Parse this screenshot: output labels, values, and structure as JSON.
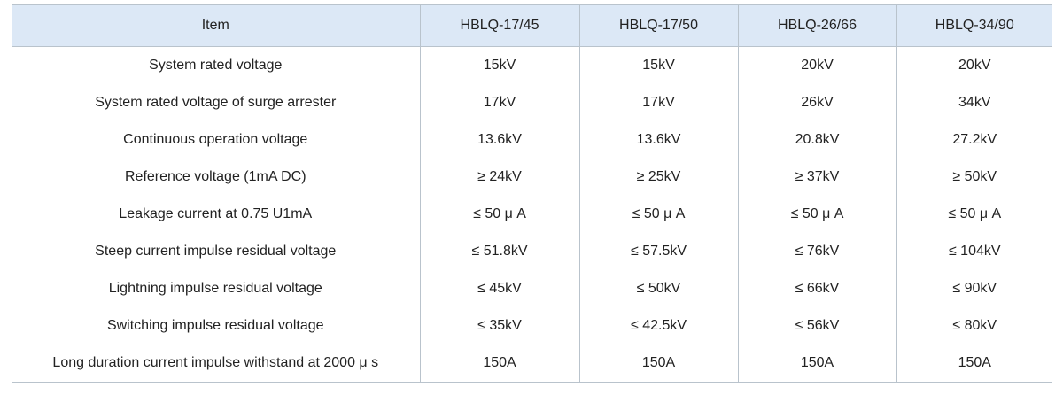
{
  "table": {
    "header": [
      "Item",
      "HBLQ-17/45",
      "HBLQ-17/50",
      "HBLQ-26/66",
      "HBLQ-34/90"
    ],
    "rows": [
      [
        "System rated voltage",
        "15kV",
        "15kV",
        "20kV",
        "20kV"
      ],
      [
        "System rated voltage of surge arrester",
        "17kV",
        "17kV",
        "26kV",
        "34kV"
      ],
      [
        "Continuous operation voltage",
        "13.6kV",
        "13.6kV",
        "20.8kV",
        "27.2kV"
      ],
      [
        "Reference voltage (1mA DC)",
        "≥ 24kV",
        "≥ 25kV",
        "≥ 37kV",
        "≥ 50kV"
      ],
      [
        "Leakage current at 0.75 U1mA",
        "≤ 50 μ A",
        "≤ 50 μ A",
        "≤ 50 μ A",
        "≤ 50 μ A"
      ],
      [
        "Steep current impulse residual voltage",
        "≤ 51.8kV",
        "≤ 57.5kV",
        "≤ 76kV",
        "≤ 104kV"
      ],
      [
        "Lightning impulse residual voltage",
        "≤ 45kV",
        "≤ 50kV",
        "≤ 66kV",
        "≤ 90kV"
      ],
      [
        "Switching impulse residual voltage",
        "≤ 35kV",
        "≤ 42.5kV",
        "≤ 56kV",
        "≤ 80kV"
      ],
      [
        "Long duration current impulse withstand at 2000 μ s",
        "150A",
        "150A",
        "150A",
        "150A"
      ]
    ]
  }
}
